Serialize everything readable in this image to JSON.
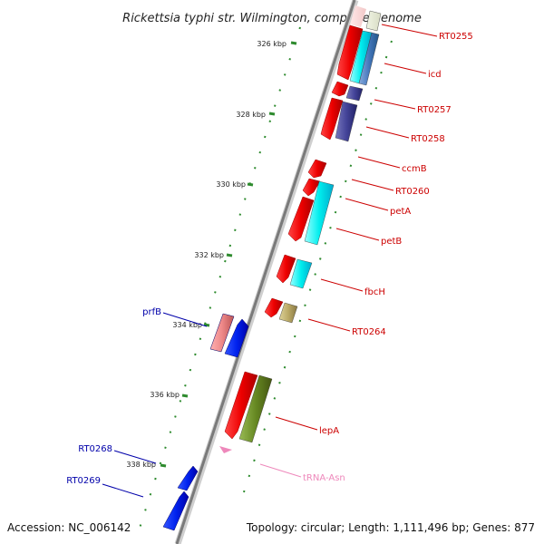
{
  "title": "Rickettsia typhi str. Wilmington, complete genome",
  "accession": "Accession: NC_006142",
  "topology": "Topology: circular; Length: 1,111,496 bp; Genes: 877",
  "ticks": [
    "326 kbp",
    "328 kbp",
    "330 kbp",
    "332 kbp",
    "334 kbp",
    "336 kbp",
    "338 kbp"
  ],
  "genes": [
    {
      "label": "RT0255",
      "color": "#cc0000"
    },
    {
      "label": "icd",
      "color": "#cc0000"
    },
    {
      "label": "RT0257",
      "color": "#cc0000"
    },
    {
      "label": "RT0258",
      "color": "#cc0000"
    },
    {
      "label": "ccmB",
      "color": "#cc0000"
    },
    {
      "label": "RT0260",
      "color": "#cc0000"
    },
    {
      "label": "petA",
      "color": "#cc0000"
    },
    {
      "label": "petB",
      "color": "#cc0000"
    },
    {
      "label": "fbcH",
      "color": "#cc0000"
    },
    {
      "label": "RT0264",
      "color": "#cc0000"
    },
    {
      "label": "lepA",
      "color": "#cc0000"
    },
    {
      "label": "tRNA-Asn",
      "color": "#ee88bb"
    },
    {
      "label": "prfB",
      "color": "#0000aa"
    },
    {
      "label": "RT0268",
      "color": "#0000aa"
    },
    {
      "label": "RT0269",
      "color": "#0000aa"
    }
  ]
}
